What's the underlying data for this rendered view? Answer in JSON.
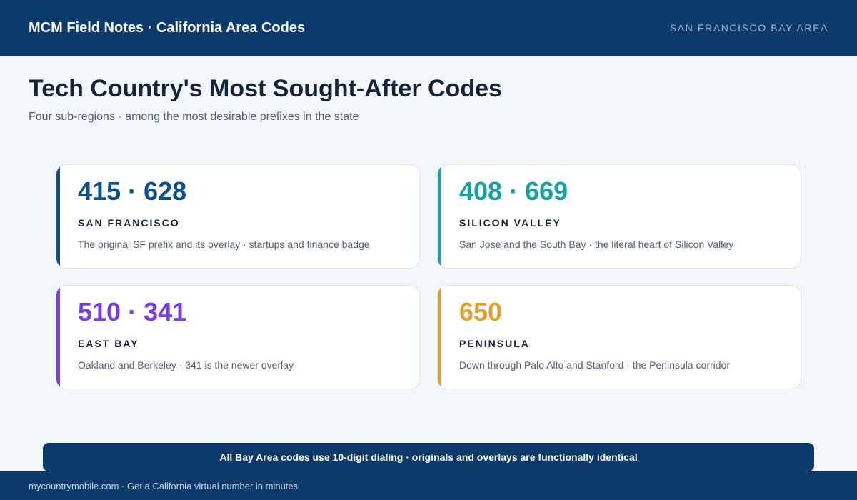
{
  "header": {
    "brand": "MCM Field Notes · California Area Codes",
    "region_tag": "SAN FRANCISCO BAY AREA"
  },
  "main": {
    "title": "Tech Country's Most Sought-After Codes",
    "subtitle": "Four sub-regions · among the most desirable prefixes in the state"
  },
  "cards": [
    {
      "codes": "415 · 628",
      "region": "SAN FRANCISCO",
      "description": "The original SF prefix and its overlay · startups and finance badge",
      "color": "#0d4f8b"
    },
    {
      "codes": "408 · 669",
      "region": "SILICON VALLEY",
      "description": "San Jose and the South Bay · the literal heart of Silicon Valley",
      "color": "#17a2a2"
    },
    {
      "codes": "510 · 341",
      "region": "EAST BAY",
      "description": "Oakland and Berkeley · 341 is the newer overlay",
      "color": "#7a3be0"
    },
    {
      "codes": "650",
      "region": "PENINSULA",
      "description": "Down through Palo Alto and Stanford · the Peninsula corridor",
      "color": "#e0a12e"
    }
  ],
  "note": "All Bay Area codes use 10-digit dialing · originals and overlays are functionally identical",
  "footer": "mycountrymobile.com · Get a California virtual number in minutes"
}
